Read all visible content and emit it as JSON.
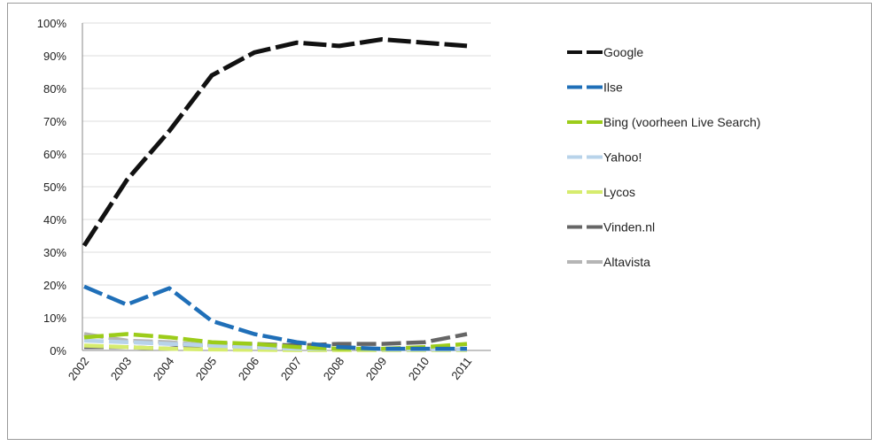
{
  "chart_data": {
    "type": "line",
    "categories": [
      "2002",
      "2003",
      "2004",
      "2005",
      "2006",
      "2007",
      "2008",
      "2009",
      "2010",
      "2011"
    ],
    "y_ticks": [
      "0%",
      "10%",
      "20%",
      "30%",
      "40%",
      "50%",
      "60%",
      "70%",
      "80%",
      "90%",
      "100%"
    ],
    "ylim": [
      0,
      100
    ],
    "grid": true,
    "legend_position": "right",
    "line_style": "dashed",
    "series": [
      {
        "name": "Google",
        "color": "#111111",
        "values": [
          32,
          52,
          67,
          84,
          91,
          94,
          93,
          95,
          94,
          93
        ]
      },
      {
        "name": "Ilse",
        "color": "#1f6fb8",
        "values": [
          19.5,
          14,
          19,
          9,
          5,
          2.5,
          1,
          0.5,
          0.5,
          0.5
        ]
      },
      {
        "name": "Bing (voorheen Live Search)",
        "color": "#9ccc1a",
        "values": [
          4,
          5,
          4,
          2.5,
          2,
          1,
          0.5,
          0.5,
          1,
          2
        ]
      },
      {
        "name": "Yahoo!",
        "color": "#b8d3ea",
        "values": [
          3,
          2.5,
          2,
          1.5,
          1,
          0.5,
          0.5,
          0.3,
          0.3,
          0.3
        ]
      },
      {
        "name": "Lycos",
        "color": "#d6ec6e",
        "values": [
          1.5,
          1,
          0.5,
          0.3,
          0.2,
          0.1,
          0.1,
          0.1,
          0.1,
          0.1
        ]
      },
      {
        "name": "Vinden.nl",
        "color": "#666666",
        "values": [
          1,
          1,
          0.5,
          2,
          2,
          1.5,
          2,
          2,
          2.5,
          5
        ]
      },
      {
        "name": "Altavista",
        "color": "#b5b5b5",
        "values": [
          5,
          3,
          2.5,
          1.5,
          1,
          0.5,
          0.3,
          0.3,
          0.3,
          0.3
        ]
      }
    ]
  }
}
